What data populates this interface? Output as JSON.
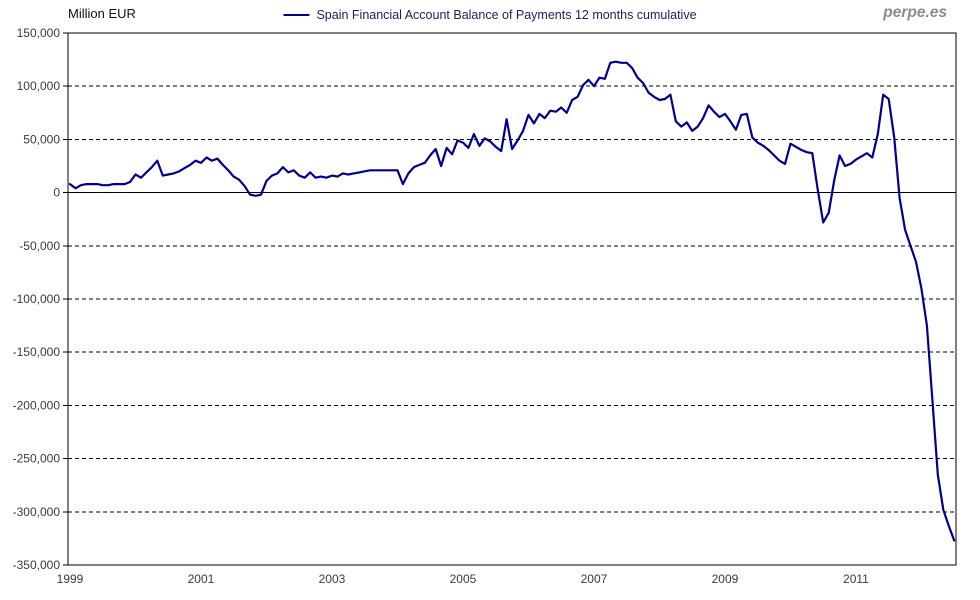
{
  "header": {
    "y_axis_title": "Million EUR",
    "watermark": "perpe.es"
  },
  "legend": {
    "label": "Spain Financial Account Balance of Payments 12 months cumulative"
  },
  "chart_data": {
    "type": "line",
    "title": "Spain Financial Account Balance of Payments 12 months cumulative",
    "unit": "Million EUR",
    "grid": "horizontal-dashed",
    "legend_position": "top-center",
    "plot_border": true,
    "ylim": [
      -350000,
      150000
    ],
    "y_ticks": [
      150000,
      100000,
      50000,
      0,
      -50000,
      -100000,
      -150000,
      -200000,
      -250000,
      -300000,
      -350000
    ],
    "y_tick_labels": [
      "150,000",
      "100,000",
      "50,000",
      "0",
      "-50,000",
      "-100,000",
      "-150,000",
      "-200,000",
      "-250,000",
      "-300,000",
      "-350,000"
    ],
    "x_start": "1999-01",
    "x_end": "2012-07",
    "x_interval": "month",
    "x_tick_labels": [
      "1999",
      "2001",
      "2003",
      "2005",
      "2007",
      "2009",
      "2011"
    ],
    "x_tick_month_index": [
      0,
      24,
      48,
      72,
      96,
      120,
      144
    ],
    "series": [
      {
        "name": "Spain Financial Account Balance of Payments 12 months cumulative",
        "color": "#000090",
        "start": "1999-01",
        "values": [
          8000,
          4000,
          7000,
          8000,
          8000,
          8000,
          7000,
          7000,
          8000,
          8000,
          8000,
          10000,
          17000,
          14000,
          19000,
          24000,
          30000,
          16000,
          17000,
          18000,
          20000,
          23000,
          26000,
          30000,
          28000,
          33000,
          30000,
          32000,
          26000,
          21000,
          15000,
          12000,
          6000,
          -2000,
          -3000,
          -2000,
          11000,
          16000,
          18000,
          24000,
          19000,
          21000,
          16000,
          14000,
          19000,
          14000,
          15000,
          14000,
          16000,
          15000,
          18000,
          17000,
          18000,
          19000,
          20000,
          21000,
          21000,
          21000,
          21000,
          21000,
          21000,
          8000,
          18000,
          24000,
          26000,
          28000,
          35000,
          41000,
          25000,
          42000,
          36000,
          49000,
          47000,
          42000,
          55000,
          44000,
          51000,
          48000,
          43000,
          39000,
          69000,
          41000,
          49000,
          58000,
          73000,
          65000,
          74000,
          70000,
          77000,
          76000,
          80000,
          75000,
          87000,
          90000,
          101000,
          106000,
          100000,
          108000,
          107000,
          122000,
          123000,
          122000,
          122000,
          117000,
          108000,
          103000,
          94000,
          90000,
          87000,
          88000,
          92000,
          67000,
          62000,
          66000,
          58000,
          62000,
          70000,
          82000,
          76000,
          71000,
          74000,
          67000,
          59000,
          73000,
          74000,
          52000,
          47000,
          44000,
          40000,
          35000,
          30000,
          27000,
          46000,
          43000,
          40000,
          38000,
          37000,
          3000,
          -28000,
          -19000,
          11000,
          35000,
          25000,
          27000,
          31000,
          34000,
          37000,
          33000,
          55000,
          92000,
          88000,
          52000,
          -5000,
          -35000,
          -50000,
          -65000,
          -90000,
          -125000,
          -195000,
          -265000,
          -298000,
          -313000,
          -327000
        ]
      }
    ]
  }
}
